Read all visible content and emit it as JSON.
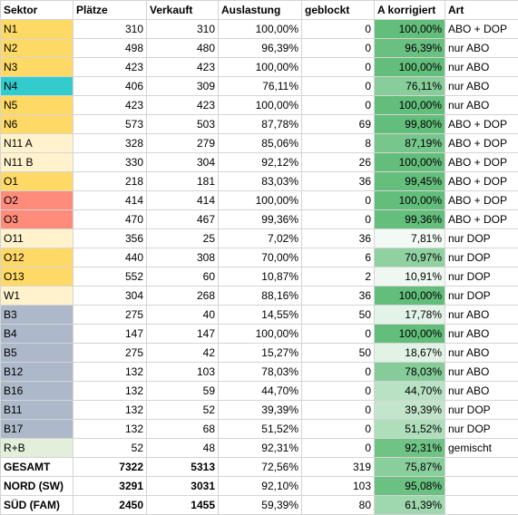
{
  "headers": [
    "Sektor",
    "Plätze",
    "Verkauft",
    "Auslastung",
    "geblockt",
    "A korrigiert",
    "Art"
  ],
  "colors": {
    "yellow": "#ffd966",
    "light_yellow": "#fff2cc",
    "teal": "#33cccc",
    "red": "#ff8b7b",
    "blue_grey": "#adb9ca",
    "light_green": "#e2efda"
  },
  "rows": [
    {
      "sektor": "N1",
      "plaetze": "310",
      "verkauft": "310",
      "auslastung": "100,00%",
      "geblockt": "0",
      "a_korr": "100,00%",
      "a_val": 100.0,
      "art": "ABO + DOP",
      "color": "yellow"
    },
    {
      "sektor": "N2",
      "plaetze": "498",
      "verkauft": "480",
      "auslastung": "96,39%",
      "geblockt": "0",
      "a_korr": "96,39%",
      "a_val": 96.39,
      "art": "nur ABO",
      "color": "yellow"
    },
    {
      "sektor": "N3",
      "plaetze": "423",
      "verkauft": "423",
      "auslastung": "100,00%",
      "geblockt": "0",
      "a_korr": "100,00%",
      "a_val": 100.0,
      "art": "nur ABO",
      "color": "yellow"
    },
    {
      "sektor": "N4",
      "plaetze": "406",
      "verkauft": "309",
      "auslastung": "76,11%",
      "geblockt": "0",
      "a_korr": "76,11%",
      "a_val": 76.11,
      "art": "nur ABO",
      "color": "teal"
    },
    {
      "sektor": "N5",
      "plaetze": "423",
      "verkauft": "423",
      "auslastung": "100,00%",
      "geblockt": "0",
      "a_korr": "100,00%",
      "a_val": 100.0,
      "art": "nur ABO",
      "color": "yellow"
    },
    {
      "sektor": "N6",
      "plaetze": "573",
      "verkauft": "503",
      "auslastung": "87,78%",
      "geblockt": "69",
      "a_korr": "99,80%",
      "a_val": 99.8,
      "art": "ABO + DOP",
      "color": "yellow"
    },
    {
      "sektor": "N11 A",
      "plaetze": "328",
      "verkauft": "279",
      "auslastung": "85,06%",
      "geblockt": "8",
      "a_korr": "87,19%",
      "a_val": 87.19,
      "art": "ABO + DOP",
      "color": "light_yellow"
    },
    {
      "sektor": "N11 B",
      "plaetze": "330",
      "verkauft": "304",
      "auslastung": "92,12%",
      "geblockt": "26",
      "a_korr": "100,00%",
      "a_val": 100.0,
      "art": "ABO + DOP",
      "color": "light_yellow"
    },
    {
      "sektor": "O1",
      "plaetze": "218",
      "verkauft": "181",
      "auslastung": "83,03%",
      "geblockt": "36",
      "a_korr": "99,45%",
      "a_val": 99.45,
      "art": "ABO + DOP",
      "color": "yellow"
    },
    {
      "sektor": "O2",
      "plaetze": "414",
      "verkauft": "414",
      "auslastung": "100,00%",
      "geblockt": "0",
      "a_korr": "100,00%",
      "a_val": 100.0,
      "art": "ABO + DOP",
      "color": "red"
    },
    {
      "sektor": "O3",
      "plaetze": "470",
      "verkauft": "467",
      "auslastung": "99,36%",
      "geblockt": "0",
      "a_korr": "99,36%",
      "a_val": 99.36,
      "art": "ABO + DOP",
      "color": "red"
    },
    {
      "sektor": "O11",
      "plaetze": "356",
      "verkauft": "25",
      "auslastung": "7,02%",
      "geblockt": "36",
      "a_korr": "7,81%",
      "a_val": 7.81,
      "art": "nur DOP",
      "color": "light_yellow"
    },
    {
      "sektor": "O12",
      "plaetze": "440",
      "verkauft": "308",
      "auslastung": "70,00%",
      "geblockt": "6",
      "a_korr": "70,97%",
      "a_val": 70.97,
      "art": "nur DOP",
      "color": "yellow"
    },
    {
      "sektor": "O13",
      "plaetze": "552",
      "verkauft": "60",
      "auslastung": "10,87%",
      "geblockt": "2",
      "a_korr": "10,91%",
      "a_val": 10.91,
      "art": "nur DOP",
      "color": "yellow"
    },
    {
      "sektor": "W1",
      "plaetze": "304",
      "verkauft": "268",
      "auslastung": "88,16%",
      "geblockt": "36",
      "a_korr": "100,00%",
      "a_val": 100.0,
      "art": "nur DOP",
      "color": "light_yellow"
    },
    {
      "sektor": "B3",
      "plaetze": "275",
      "verkauft": "40",
      "auslastung": "14,55%",
      "geblockt": "50",
      "a_korr": "17,78%",
      "a_val": 17.78,
      "art": "nur ABO",
      "color": "blue_grey"
    },
    {
      "sektor": "B4",
      "plaetze": "147",
      "verkauft": "147",
      "auslastung": "100,00%",
      "geblockt": "0",
      "a_korr": "100,00%",
      "a_val": 100.0,
      "art": "nur ABO",
      "color": "blue_grey"
    },
    {
      "sektor": "B5",
      "plaetze": "275",
      "verkauft": "42",
      "auslastung": "15,27%",
      "geblockt": "50",
      "a_korr": "18,67%",
      "a_val": 18.67,
      "art": "nur ABO",
      "color": "blue_grey"
    },
    {
      "sektor": "B12",
      "plaetze": "132",
      "verkauft": "103",
      "auslastung": "78,03%",
      "geblockt": "0",
      "a_korr": "78,03%",
      "a_val": 78.03,
      "art": "nur ABO",
      "color": "blue_grey"
    },
    {
      "sektor": "B16",
      "plaetze": "132",
      "verkauft": "59",
      "auslastung": "44,70%",
      "geblockt": "0",
      "a_korr": "44,70%",
      "a_val": 44.7,
      "art": "nur ABO",
      "color": "blue_grey"
    },
    {
      "sektor": "B11",
      "plaetze": "132",
      "verkauft": "52",
      "auslastung": "39,39%",
      "geblockt": "0",
      "a_korr": "39,39%",
      "a_val": 39.39,
      "art": "nur DOP",
      "color": "blue_grey"
    },
    {
      "sektor": "B17",
      "plaetze": "132",
      "verkauft": "68",
      "auslastung": "51,52%",
      "geblockt": "0",
      "a_korr": "51,52%",
      "a_val": 51.52,
      "art": "nur DOP",
      "color": "blue_grey"
    },
    {
      "sektor": "R+B",
      "plaetze": "52",
      "verkauft": "48",
      "auslastung": "92,31%",
      "geblockt": "0",
      "a_korr": "92,31%",
      "a_val": 92.31,
      "art": "gemischt",
      "color": "light_green"
    }
  ],
  "totals": [
    {
      "sektor": "GESAMT",
      "plaetze": "7322",
      "verkauft": "5313",
      "auslastung": "72,56%",
      "geblockt": "319",
      "a_korr": "75,87%",
      "a_val": 75.87,
      "art": ""
    },
    {
      "sektor": "NORD (SW)",
      "plaetze": "3291",
      "verkauft": "3031",
      "auslastung": "92,10%",
      "geblockt": "103",
      "a_korr": "95,08%",
      "a_val": 95.08,
      "art": ""
    },
    {
      "sektor": "SÜD (FAM)",
      "plaetze": "2450",
      "verkauft": "1455",
      "auslastung": "59,39%",
      "geblockt": "80",
      "a_korr": "61,39%",
      "a_val": 61.39,
      "art": ""
    }
  ]
}
